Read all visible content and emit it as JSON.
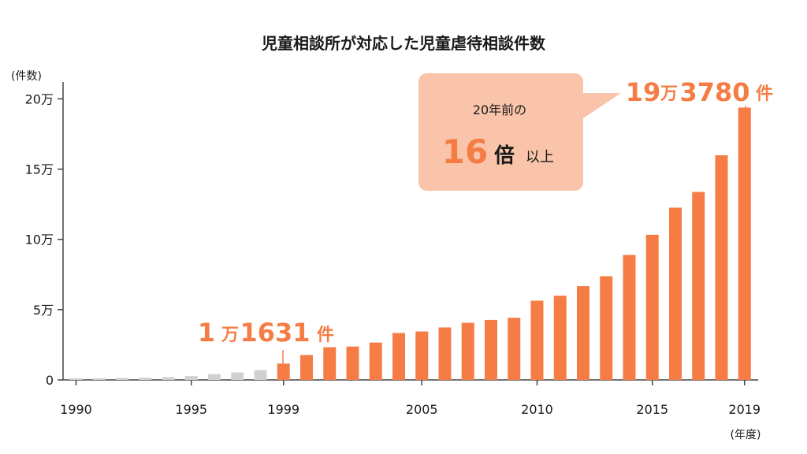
{
  "chart_data": {
    "type": "bar",
    "title": "児童相談所が対応した児童虐待相談件数",
    "ylabel": "(件数)",
    "xlabel": "(年度)",
    "ylim": [
      0,
      220000
    ],
    "y_ticks": [
      {
        "value": 0,
        "label": "0"
      },
      {
        "value": 50000,
        "label": "5万"
      },
      {
        "value": 100000,
        "label": "10万"
      },
      {
        "value": 150000,
        "label": "15万"
      },
      {
        "value": 200000,
        "label": "20万"
      }
    ],
    "x_tick_labels": [
      "1990",
      "1995",
      "1999",
      "2005",
      "2010",
      "2015",
      "2019"
    ],
    "categories": [
      "1990",
      "1991",
      "1992",
      "1993",
      "1994",
      "1995",
      "1996",
      "1997",
      "1998",
      "1999",
      "2000",
      "2001",
      "2002",
      "2003",
      "2004",
      "2005",
      "2006",
      "2007",
      "2008",
      "2009",
      "2010",
      "2011",
      "2012",
      "2013",
      "2014",
      "2015",
      "2016",
      "2017",
      "2018",
      "2019"
    ],
    "values": [
      1101,
      1171,
      1372,
      1611,
      1961,
      2722,
      4102,
      5352,
      6932,
      11631,
      17725,
      23274,
      23738,
      26569,
      33408,
      34472,
      37323,
      40639,
      42664,
      44211,
      56384,
      59919,
      66701,
      73802,
      88931,
      103286,
      122575,
      133778,
      159838,
      193780
    ],
    "highlight_from": "1999",
    "colors": {
      "highlight": "#f57d45",
      "muted": "#d0d0d0",
      "bubble": "#f9c4aa"
    }
  },
  "annotations": {
    "start": {
      "num1": "1",
      "unit1": "万",
      "num2": "1631",
      "unit2": "件"
    },
    "end": {
      "num1": "19",
      "unit1": "万",
      "num2": "3780",
      "unit2": "件"
    },
    "bubble": {
      "line1": "20年前の",
      "num": "16",
      "unit": "倍",
      "suffix": "以上"
    }
  }
}
